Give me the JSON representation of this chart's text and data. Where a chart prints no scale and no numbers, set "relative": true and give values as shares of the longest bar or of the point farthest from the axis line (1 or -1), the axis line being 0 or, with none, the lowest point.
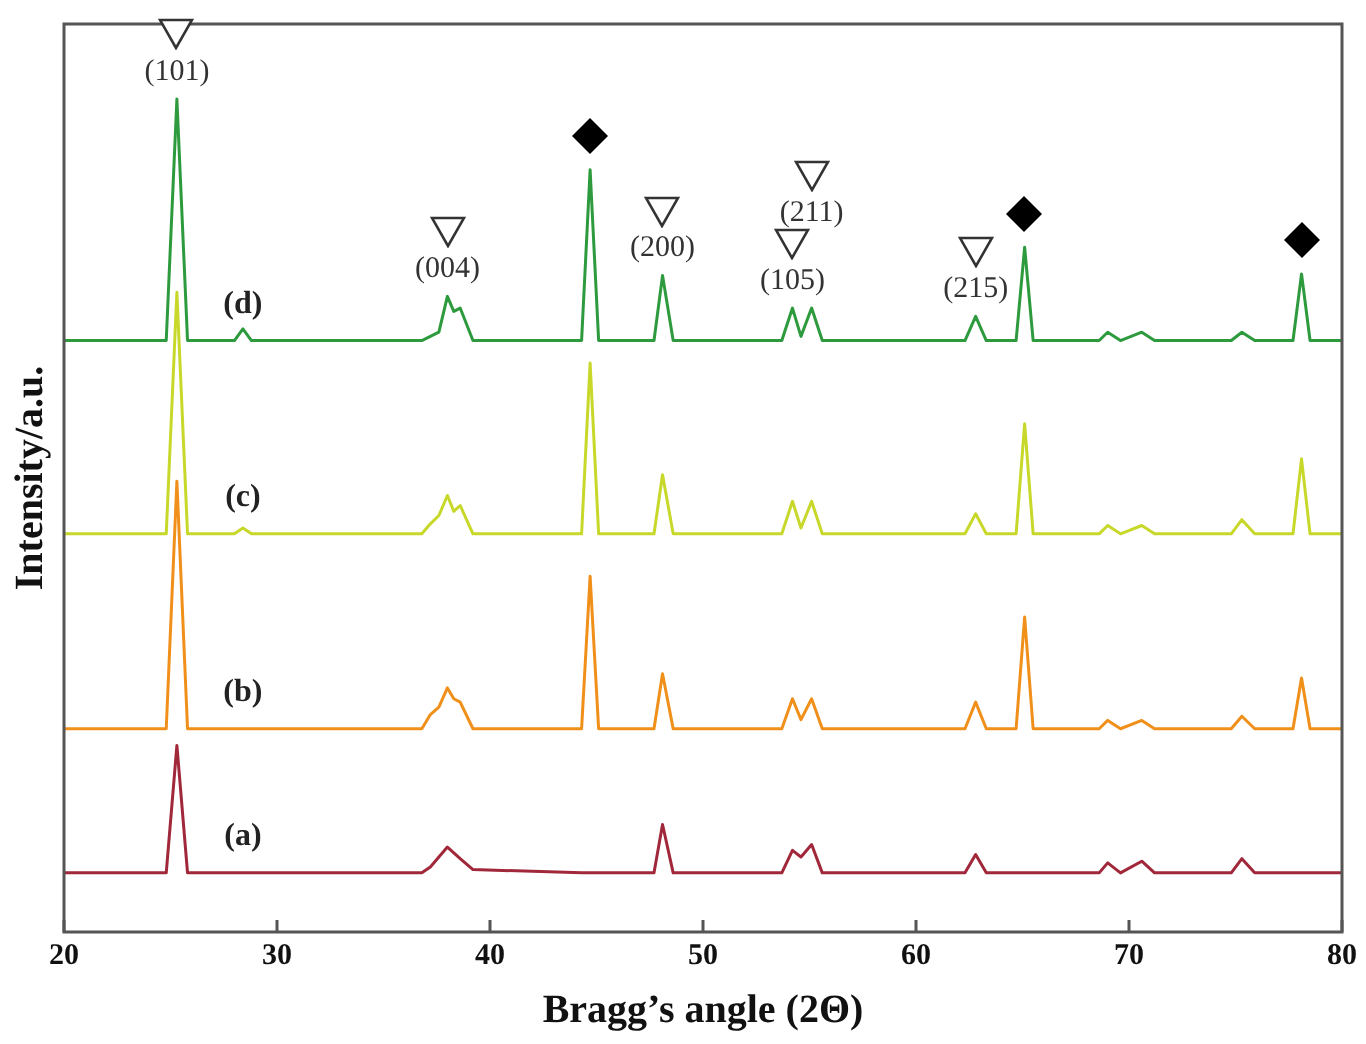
{
  "chart_data": {
    "type": "line",
    "relative": true,
    "xlabel": "Bragg’s angle (2Θ)",
    "ylabel": "Intensity/a.u.",
    "xlim": [
      20,
      80
    ],
    "xticks": [
      20,
      30,
      40,
      50,
      60,
      70,
      80
    ],
    "grid": false,
    "legend": false,
    "marker": "none",
    "line_style": "solid",
    "x": [
      20,
      24.8,
      25.3,
      25.8,
      28.0,
      28.4,
      28.8,
      36.8,
      37.2,
      37.6,
      38.0,
      38.3,
      38.6,
      39.2,
      44.3,
      44.7,
      45.1,
      47.7,
      48.1,
      48.6,
      53.7,
      54.2,
      54.6,
      55.1,
      55.6,
      62.3,
      62.8,
      63.3,
      64.7,
      65.1,
      65.5,
      68.6,
      69.0,
      69.6,
      70.6,
      71.2,
      74.8,
      75.3,
      75.9,
      77.7,
      78.1,
      78.5,
      80
    ],
    "series": [
      {
        "name": "(a)",
        "color": "#a0283a",
        "values": [
          0.071,
          0.071,
          0.224,
          0.071,
          0.071,
          0.071,
          0.071,
          0.071,
          0.078,
          0.09,
          0.102,
          0.095,
          0.088,
          0.075,
          0.071,
          0.071,
          0.071,
          0.071,
          0.129,
          0.071,
          0.071,
          0.098,
          0.09,
          0.105,
          0.071,
          0.071,
          0.093,
          0.071,
          0.071,
          0.071,
          0.071,
          0.071,
          0.083,
          0.071,
          0.085,
          0.071,
          0.071,
          0.088,
          0.071,
          0.071,
          0.071,
          0.071,
          0.071
        ]
      },
      {
        "name": "(b)",
        "color": "#f0901a",
        "values": [
          0.244,
          0.244,
          0.541,
          0.244,
          0.244,
          0.244,
          0.244,
          0.244,
          0.261,
          0.27,
          0.293,
          0.28,
          0.276,
          0.244,
          0.244,
          0.427,
          0.244,
          0.244,
          0.31,
          0.244,
          0.244,
          0.28,
          0.255,
          0.28,
          0.244,
          0.244,
          0.276,
          0.244,
          0.244,
          0.378,
          0.244,
          0.244,
          0.254,
          0.244,
          0.254,
          0.244,
          0.244,
          0.259,
          0.244,
          0.244,
          0.305,
          0.244,
          0.244
        ]
      },
      {
        "name": "(c)",
        "color": "#c8d82a",
        "values": [
          0.478,
          0.478,
          0.768,
          0.478,
          0.478,
          0.485,
          0.478,
          0.478,
          0.49,
          0.5,
          0.524,
          0.505,
          0.512,
          0.478,
          0.478,
          0.683,
          0.478,
          0.478,
          0.549,
          0.478,
          0.478,
          0.517,
          0.485,
          0.517,
          0.478,
          0.478,
          0.502,
          0.478,
          0.478,
          0.61,
          0.478,
          0.478,
          0.488,
          0.478,
          0.488,
          0.478,
          0.478,
          0.495,
          0.478,
          0.478,
          0.568,
          0.478,
          0.478
        ]
      },
      {
        "name": "(d)",
        "color": "#2e9a3e",
        "values": [
          0.71,
          0.71,
          1.0,
          0.71,
          0.71,
          0.724,
          0.71,
          0.71,
          0.715,
          0.72,
          0.763,
          0.745,
          0.749,
          0.71,
          0.71,
          0.915,
          0.71,
          0.71,
          0.788,
          0.71,
          0.71,
          0.749,
          0.715,
          0.749,
          0.71,
          0.71,
          0.739,
          0.71,
          0.71,
          0.822,
          0.71,
          0.71,
          0.72,
          0.71,
          0.72,
          0.71,
          0.71,
          0.72,
          0.71,
          0.71,
          0.79,
          0.71,
          0.71
        ]
      }
    ],
    "annotations": [
      {
        "text": "(101)",
        "x": 25.3,
        "y": 1.0
      },
      {
        "text": "(004)",
        "x": 38.0,
        "y": 0.763
      },
      {
        "text": "(200)",
        "x": 48.1,
        "y": 0.788
      },
      {
        "text": "(105)",
        "x": 54.2,
        "y": 0.749
      },
      {
        "text": "(211)",
        "x": 55.1,
        "y": 0.749
      },
      {
        "text": "(215)",
        "x": 62.8,
        "y": 0.739
      }
    ]
  }
}
